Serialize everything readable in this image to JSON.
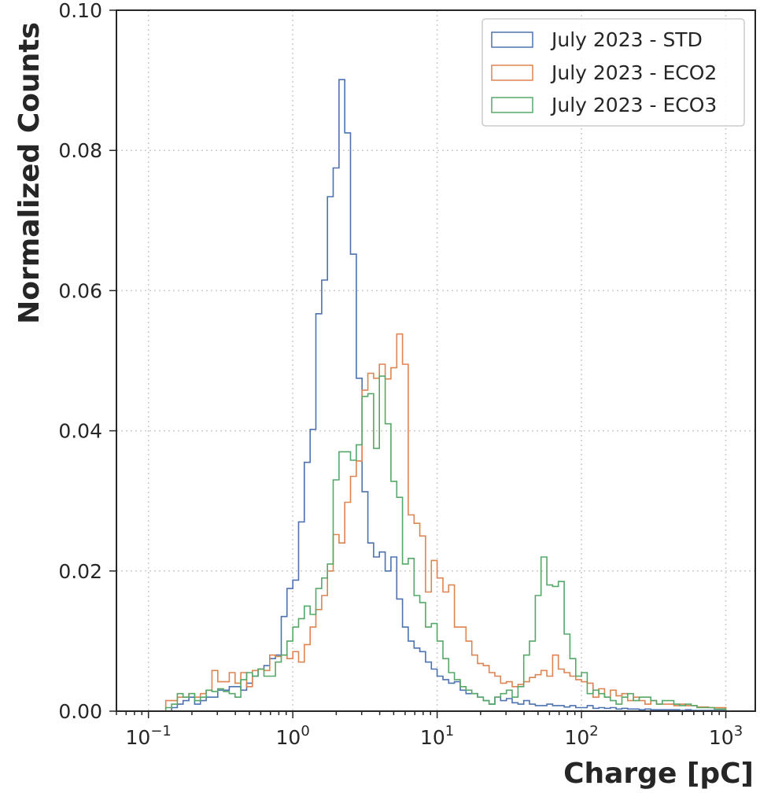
{
  "chart_data": {
    "type": "step-histogram",
    "xlabel": "Charge [pC]",
    "ylabel": "Normalized Counts",
    "xscale": "log",
    "xlim": [
      0.06,
      1600
    ],
    "ylim": [
      0,
      0.1
    ],
    "grid": true,
    "legend_position": "top-right",
    "x_ticks": [
      {
        "value": 0.1,
        "base": "10",
        "exp": "−1"
      },
      {
        "value": 1,
        "base": "10",
        "exp": "0"
      },
      {
        "value": 10,
        "base": "10",
        "exp": "1"
      },
      {
        "value": 100,
        "base": "10",
        "exp": "2"
      },
      {
        "value": 1000,
        "base": "10",
        "exp": "3"
      }
    ],
    "y_ticks": [
      "0.00",
      "0.02",
      "0.04",
      "0.06",
      "0.08",
      "0.10"
    ],
    "bins": {
      "log10_min": -1.0,
      "log10_max": 3.0,
      "count": 100
    },
    "series": [
      {
        "name": "July 2023 - STD",
        "color": "#4c72b0",
        "values": [
          0,
          0,
          0,
          0,
          0.0005,
          0.001,
          0.0015,
          0.002,
          0.001,
          0.0015,
          0.002,
          0.002,
          0.003,
          0.003,
          0.0035,
          0.0035,
          0.003,
          0.004,
          0.005,
          0.006,
          0.0065,
          0.0075,
          0.008,
          0.0135,
          0.0175,
          0.0187,
          0.027,
          0.0355,
          0.0402,
          0.0567,
          0.0615,
          0.0734,
          0.0775,
          0.0901,
          0.0825,
          0.0652,
          0.0475,
          0.0313,
          0.024,
          0.022,
          0.0227,
          0.02,
          0.022,
          0.016,
          0.012,
          0.01,
          0.009,
          0.0085,
          0.007,
          0.006,
          0.005,
          0.0045,
          0.004,
          0.0042,
          0.003,
          0.0025,
          0.0025,
          0.002,
          0.0015,
          0.001,
          0.002,
          0.0015,
          0.0018,
          0.0012,
          0.001,
          0.0015,
          0.001,
          0.0008,
          0.0008,
          0.001,
          0.0008,
          0.0008,
          0.0006,
          0.0008,
          0.0005,
          0.0005,
          0.0008,
          0.0004,
          0.0005,
          0.0004,
          0.0005,
          0.0003,
          0.0004,
          0.0003,
          0.0003,
          0.0002,
          0.0003,
          0.0002,
          0.0002,
          0.0002,
          0.0002,
          0.0002,
          0.0001,
          0.0002,
          0.0001,
          0.0001,
          0.0001,
          0.0001,
          0.0001,
          0.0001
        ]
      },
      {
        "name": "July 2023 - ECO2",
        "color": "#dd8452",
        "values": [
          0,
          0,
          0,
          0.0015,
          0.0015,
          0.002,
          0.002,
          0.0025,
          0.002,
          0.0025,
          0.003,
          0.0058,
          0.0042,
          0.0042,
          0.0055,
          0.004,
          0.0055,
          0.0035,
          0.0058,
          0.006,
          0.0058,
          0.008,
          0.0078,
          0.008,
          0.0075,
          0.0085,
          0.007,
          0.0095,
          0.012,
          0.0145,
          0.0165,
          0.02,
          0.0252,
          0.024,
          0.0298,
          0.0335,
          0.0357,
          0.0458,
          0.0482,
          0.0475,
          0.0495,
          0.0474,
          0.049,
          0.0538,
          0.0495,
          0.028,
          0.0268,
          0.025,
          0.017,
          0.0215,
          0.019,
          0.017,
          0.018,
          0.012,
          0.012,
          0.01,
          0.008,
          0.0068,
          0.0065,
          0.0055,
          0.005,
          0.004,
          0.0042,
          0.0035,
          0.0038,
          0.0042,
          0.0048,
          0.0052,
          0.0058,
          0.005,
          0.008,
          0.006,
          0.0055,
          0.005,
          0.0045,
          0.0042,
          0.004,
          0.002,
          0.0032,
          0.002,
          0.003,
          0.0022,
          0.0025,
          0.0015,
          0.002,
          0.0015,
          0.001,
          0.0015,
          0.001,
          0.001,
          0.001,
          0.0008,
          0.001,
          0.0008,
          0.0008,
          0.0006,
          0.0006,
          0.0005,
          0.0005,
          0.0005
        ]
      },
      {
        "name": "July 2023 - ECO3",
        "color": "#55a868",
        "values": [
          0,
          0,
          0,
          0.0005,
          0.001,
          0.0025,
          0.002,
          0.0025,
          0.0015,
          0.002,
          0.003,
          0.0028,
          0.0032,
          0.0028,
          0.0025,
          0.002,
          0.0045,
          0.0055,
          0.005,
          0.006,
          0.005,
          0.005,
          0.007,
          0.008,
          0.01,
          0.012,
          0.0132,
          0.015,
          0.0138,
          0.0175,
          0.019,
          0.021,
          0.033,
          0.037,
          0.037,
          0.0358,
          0.038,
          0.0449,
          0.0453,
          0.0375,
          0.0478,
          0.041,
          0.0328,
          0.0305,
          0.021,
          0.0218,
          0.0165,
          0.0155,
          0.012,
          0.0125,
          0.01,
          0.0075,
          0.0055,
          0.0045,
          0.0035,
          0.003,
          0.0025,
          0.002,
          0.0015,
          0.001,
          0.002,
          0.0025,
          0.003,
          0.002,
          0.0035,
          0.008,
          0.01,
          0.0165,
          0.022,
          0.018,
          0.0178,
          0.0185,
          0.011,
          0.0075,
          0.005,
          0.0055,
          0.0025,
          0.003,
          0.0025,
          0.002,
          0.0015,
          0.001,
          0.002,
          0.0025,
          0.0015,
          0.002,
          0.002,
          0.0015,
          0.001,
          0.0015,
          0.0015,
          0.001,
          0.0008,
          0.001,
          0.0008,
          0.0005,
          0.0005,
          0.0005,
          0.0003,
          0.0003
        ]
      }
    ]
  }
}
